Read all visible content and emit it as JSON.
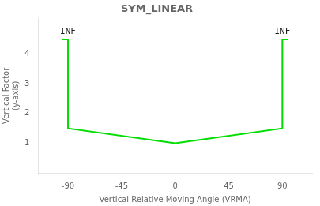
{
  "chart_data": {
    "type": "line",
    "title": "SYM_LINEAR",
    "x_label": "Vertical Relative Moving Angle (VRMA)",
    "y_label": "Vertical Factor\n(y-axis)",
    "series": [
      {
        "name": "SYM_LINEAR",
        "color": "#00dd00",
        "x": [
          -95,
          -90,
          -90,
          0,
          90,
          90,
          95
        ],
        "values": [
          4.5,
          4.5,
          1.5,
          1.0,
          1.5,
          4.5,
          4.5
        ]
      }
    ],
    "annotations": [
      {
        "text": "INF",
        "x": -90,
        "y": 4.5
      },
      {
        "text": "INF",
        "x": 90,
        "y": 4.5
      }
    ],
    "xlim": [
      -115,
      115
    ],
    "xticks": [
      -90,
      -45,
      0,
      45,
      90
    ],
    "ylim": [
      0,
      5.2
    ],
    "yticks": [
      1,
      2,
      3,
      4
    ],
    "grid": false
  }
}
